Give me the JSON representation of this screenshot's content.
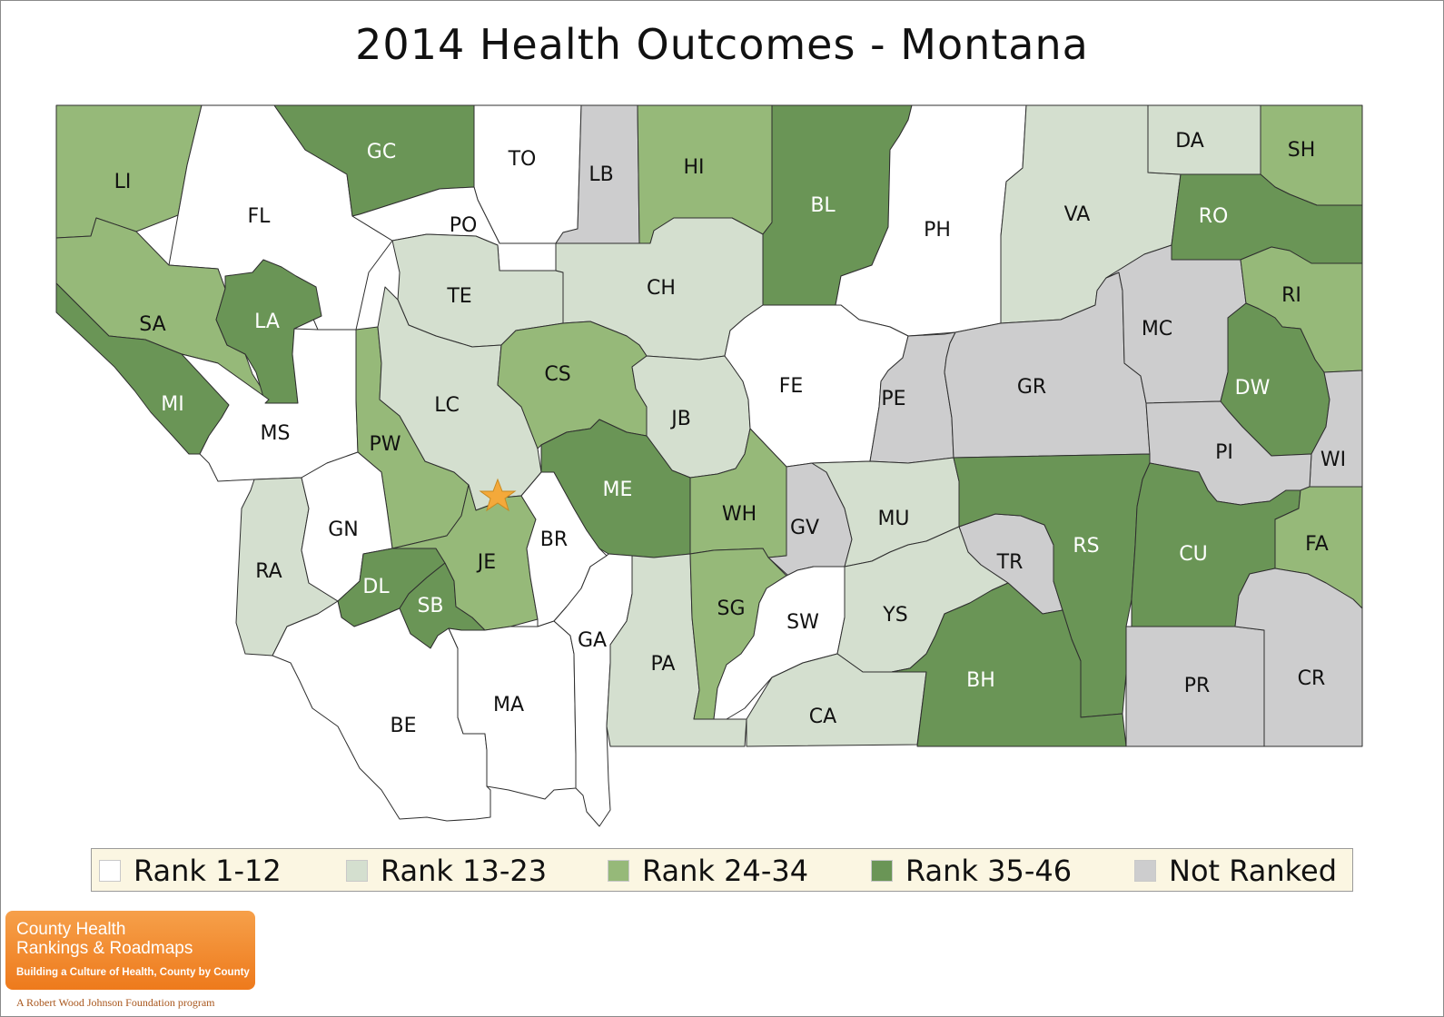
{
  "title": "2014 Health Outcomes - Montana",
  "colors": {
    "rank_1_12": "#ffffff",
    "rank_13_23": "#d4dfcf",
    "rank_24_34": "#96b979",
    "rank_35_46": "#6a9556",
    "not_ranked": "#cdcdce",
    "border": "#2f2f2f",
    "star": "#f4a93a"
  },
  "legend": [
    {
      "key": "rank_1_12",
      "label": "Rank 1-12"
    },
    {
      "key": "rank_13_23",
      "label": "Rank 13-23"
    },
    {
      "key": "rank_24_34",
      "label": "Rank 24-34"
    },
    {
      "key": "rank_35_46",
      "label": "Rank 35-46"
    },
    {
      "key": "not_ranked",
      "label": "Not Ranked"
    }
  ],
  "counties": [
    {
      "abbr": "LI",
      "cls": "rank_24_34"
    },
    {
      "abbr": "FL",
      "cls": "rank_1_12"
    },
    {
      "abbr": "GC",
      "cls": "rank_35_46"
    },
    {
      "abbr": "TO",
      "cls": "rank_1_12"
    },
    {
      "abbr": "LB",
      "cls": "not_ranked"
    },
    {
      "abbr": "HI",
      "cls": "rank_24_34"
    },
    {
      "abbr": "BL",
      "cls": "rank_35_46"
    },
    {
      "abbr": "PH",
      "cls": "rank_1_12"
    },
    {
      "abbr": "VA",
      "cls": "rank_13_23"
    },
    {
      "abbr": "DA",
      "cls": "rank_13_23"
    },
    {
      "abbr": "SH",
      "cls": "rank_24_34"
    },
    {
      "abbr": "RO",
      "cls": "rank_35_46"
    },
    {
      "abbr": "PO",
      "cls": "rank_1_12"
    },
    {
      "abbr": "SA",
      "cls": "rank_24_34"
    },
    {
      "abbr": "LA",
      "cls": "rank_35_46"
    },
    {
      "abbr": "TE",
      "cls": "rank_13_23"
    },
    {
      "abbr": "CH",
      "cls": "rank_13_23"
    },
    {
      "abbr": "MI",
      "cls": "rank_35_46"
    },
    {
      "abbr": "MS",
      "cls": "rank_1_12"
    },
    {
      "abbr": "PW",
      "cls": "rank_24_34"
    },
    {
      "abbr": "LC",
      "cls": "rank_13_23"
    },
    {
      "abbr": "CS",
      "cls": "rank_24_34"
    },
    {
      "abbr": "JB",
      "cls": "rank_13_23"
    },
    {
      "abbr": "FE",
      "cls": "rank_1_12"
    },
    {
      "abbr": "PE",
      "cls": "not_ranked"
    },
    {
      "abbr": "GR",
      "cls": "not_ranked"
    },
    {
      "abbr": "MC",
      "cls": "not_ranked"
    },
    {
      "abbr": "RI",
      "cls": "rank_24_34"
    },
    {
      "abbr": "DW",
      "cls": "rank_35_46"
    },
    {
      "abbr": "WI",
      "cls": "not_ranked"
    },
    {
      "abbr": "PI",
      "cls": "not_ranked"
    },
    {
      "abbr": "RA",
      "cls": "rank_13_23"
    },
    {
      "abbr": "GN",
      "cls": "rank_1_12"
    },
    {
      "abbr": "DL",
      "cls": "rank_35_46"
    },
    {
      "abbr": "SB",
      "cls": "rank_35_46"
    },
    {
      "abbr": "JE",
      "cls": "rank_24_34"
    },
    {
      "abbr": "BR",
      "cls": "rank_1_12"
    },
    {
      "abbr": "ME",
      "cls": "rank_35_46"
    },
    {
      "abbr": "WH",
      "cls": "rank_24_34"
    },
    {
      "abbr": "GV",
      "cls": "not_ranked"
    },
    {
      "abbr": "MU",
      "cls": "rank_13_23"
    },
    {
      "abbr": "TR",
      "cls": "not_ranked"
    },
    {
      "abbr": "RS",
      "cls": "rank_35_46"
    },
    {
      "abbr": "CU",
      "cls": "rank_35_46"
    },
    {
      "abbr": "FA",
      "cls": "rank_24_34"
    },
    {
      "abbr": "BE",
      "cls": "rank_1_12"
    },
    {
      "abbr": "MA",
      "cls": "rank_1_12"
    },
    {
      "abbr": "GA",
      "cls": "rank_1_12"
    },
    {
      "abbr": "PA",
      "cls": "rank_13_23"
    },
    {
      "abbr": "SG",
      "cls": "rank_24_34"
    },
    {
      "abbr": "SW",
      "cls": "rank_1_12"
    },
    {
      "abbr": "YS",
      "cls": "rank_13_23"
    },
    {
      "abbr": "CA",
      "cls": "rank_13_23"
    },
    {
      "abbr": "BH",
      "cls": "rank_35_46"
    },
    {
      "abbr": "PR",
      "cls": "not_ranked"
    },
    {
      "abbr": "CR",
      "cls": "not_ranked"
    }
  ],
  "capital_marker": "star",
  "logo": {
    "line1": "County Health",
    "line2": "Rankings & Roadmaps",
    "tagline": "Building a Culture of Health, County by County",
    "footer": "A Robert Wood Johnson Foundation program"
  }
}
